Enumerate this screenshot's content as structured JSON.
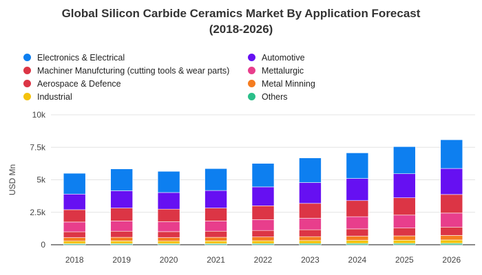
{
  "chart_data": {
    "type": "bar",
    "stacked": true,
    "title": "Global Silicon Carbide Ceramics Market By Application Forecast",
    "subtitle": "(2018-2026)",
    "ylabel": "USD Mn",
    "xlabel": "",
    "ylim": [
      0,
      10000
    ],
    "yticks": [
      0,
      2500,
      5000,
      7500,
      10000
    ],
    "ytick_labels": [
      "0",
      "2.5k",
      "5k",
      "7.5k",
      "10k"
    ],
    "grid": true,
    "legend_position": "top",
    "categories": [
      "2018",
      "2019",
      "2020",
      "2021",
      "2022",
      "2023",
      "2024",
      "2025",
      "2026"
    ],
    "series": [
      {
        "name": "Others",
        "color": "#2bbf8a",
        "values": [
          80,
          85,
          80,
          85,
          90,
          95,
          100,
          105,
          110
        ]
      },
      {
        "name": "Industrial",
        "color": "#f4c20d",
        "values": [
          200,
          210,
          200,
          210,
          220,
          230,
          240,
          250,
          260
        ]
      },
      {
        "name": "Metal Minning",
        "color": "#f57c20",
        "values": [
          270,
          280,
          270,
          280,
          290,
          300,
          320,
          330,
          350
        ]
      },
      {
        "name": "Aerospace & Defence",
        "color": "#dc3545",
        "values": [
          450,
          470,
          460,
          470,
          500,
          530,
          560,
          600,
          640
        ]
      },
      {
        "name": "Mettalurgic",
        "color": "#e83e8c",
        "values": [
          750,
          780,
          760,
          780,
          830,
          880,
          940,
          1000,
          1080
        ]
      },
      {
        "name": "Machiner Manufcturing (cutting tools & wear parts)",
        "color": "#dc3545",
        "values": [
          950,
          1000,
          970,
          1000,
          1070,
          1150,
          1240,
          1330,
          1430
        ]
      },
      {
        "name": "Automotive",
        "color": "#6610f2",
        "values": [
          1200,
          1330,
          1280,
          1350,
          1450,
          1600,
          1700,
          1850,
          2000
        ]
      },
      {
        "name": "Electronics & Electrical",
        "color": "#0d7ff0",
        "values": [
          1600,
          1680,
          1630,
          1685,
          1810,
          1895,
          1970,
          2085,
          2210
        ]
      }
    ]
  },
  "legend": [
    {
      "label": "Electronics & Electrical",
      "color": "#0d7ff0"
    },
    {
      "label": "Automotive",
      "color": "#6610f2"
    },
    {
      "label": "Machiner Manufcturing (cutting tools & wear parts)",
      "color": "#dc3545"
    },
    {
      "label": "Mettalurgic",
      "color": "#e83e8c"
    },
    {
      "label": "Aerospace & Defence",
      "color": "#dc3545"
    },
    {
      "label": "Metal Minning",
      "color": "#f57c20"
    },
    {
      "label": "Industrial",
      "color": "#f4c20d"
    },
    {
      "label": "Others",
      "color": "#2bbf8a"
    }
  ]
}
